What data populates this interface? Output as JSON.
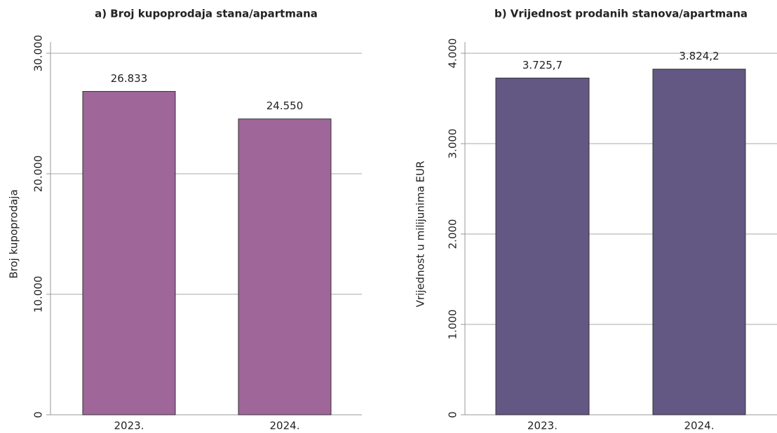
{
  "chart_data": [
    {
      "type": "bar",
      "title": "a) Broj kupoprodaja stana/apartmana",
      "ylabel": "Broj kupoprodaja",
      "categories": [
        "2023.",
        "2024."
      ],
      "values": [
        26833,
        24550
      ],
      "value_labels": [
        "26.833",
        "24.550"
      ],
      "color": "#9e6699",
      "ylim": [
        0,
        30000
      ],
      "yticks": [
        0,
        {
          "value": 10000,
          "label": "10.000"
        },
        {
          "value": 20000,
          "label": "20.000"
        },
        {
          "value": 30000,
          "label": "30.000"
        }
      ],
      "grid": true
    },
    {
      "type": "bar",
      "title": "b) Vrijednost prodanih stanova/apartmana",
      "ylabel": "Vrijednost u milijunima EUR",
      "categories": [
        "2023.",
        "2024."
      ],
      "values": [
        3725.7,
        3824.2
      ],
      "value_labels": [
        "3.725,7",
        "3.824,2"
      ],
      "color": "#635783",
      "ylim": [
        0,
        4000
      ],
      "yticks": [
        0,
        {
          "value": 1000,
          "label": "1.000"
        },
        {
          "value": 2000,
          "label": "2.000"
        },
        {
          "value": 3000,
          "label": "3.000"
        },
        {
          "value": 4000,
          "label": "4.000"
        }
      ],
      "grid": true
    }
  ]
}
